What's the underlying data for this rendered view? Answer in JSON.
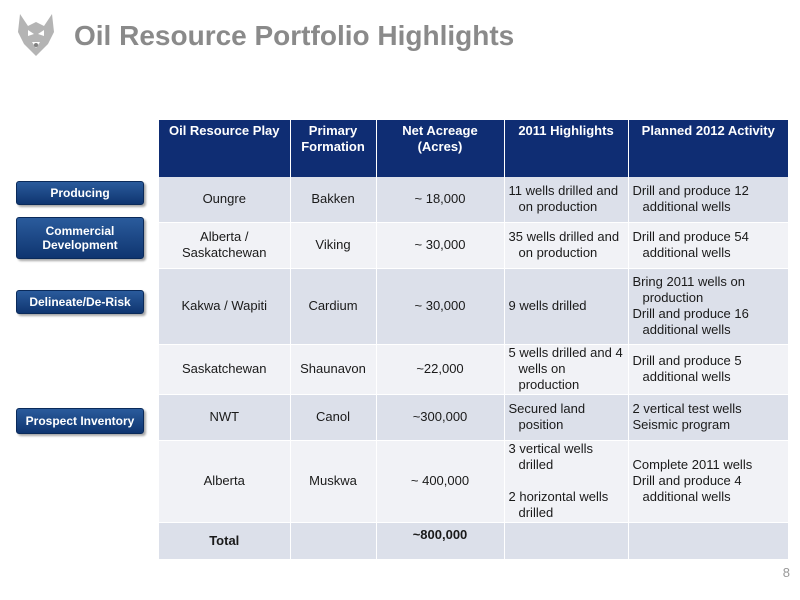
{
  "title": "Oil Resource Portfolio Highlights",
  "logo": "husky-dog-logo",
  "stages": {
    "producing": "Producing",
    "commercial": "Commercial Development",
    "delineate": "Delineate/De-Risk",
    "prospect": "Prospect Inventory"
  },
  "table": {
    "headers": [
      "Oil Resource Play",
      "Primary Formation",
      "Net Acreage (Acres)",
      "2011 Highlights",
      "Planned 2012 Activity"
    ],
    "rows": [
      {
        "play": "Oungre",
        "formation": "Bakken",
        "acreage": "~ 18,000",
        "highlights": [
          "11 wells drilled and on production"
        ],
        "planned": [
          "Drill and produce 12 additional wells"
        ]
      },
      {
        "play": "Alberta / Saskatchewan",
        "formation": "Viking",
        "acreage": "~ 30,000",
        "highlights": [
          "35 wells drilled and on production"
        ],
        "planned": [
          "Drill and produce 54 additional wells"
        ]
      },
      {
        "play": "Kakwa / Wapiti",
        "formation": "Cardium",
        "acreage": "~ 30,000",
        "highlights": [
          "9 wells drilled"
        ],
        "planned": [
          "Bring 2011 wells on production",
          "Drill  and produce 16 additional wells"
        ]
      },
      {
        "play": "Saskatchewan",
        "formation": "Shaunavon",
        "acreage": "~22,000",
        "highlights": [
          "5 wells drilled and 4 wells on production"
        ],
        "planned": [
          "Drill and produce 5 additional wells"
        ]
      },
      {
        "play": "NWT",
        "formation": "Canol",
        "acreage": "~300,000",
        "highlights": [
          "Secured land position"
        ],
        "planned": [
          "2 vertical test wells",
          "Seismic program"
        ]
      },
      {
        "play": "Alberta",
        "formation": "Muskwa",
        "acreage": "~ 400,000",
        "highlights": [
          "3 vertical wells drilled",
          "2 horizontal wells drilled"
        ],
        "planned": [
          "Complete 2011 wells",
          "Drill and produce 4 additional wells"
        ]
      }
    ],
    "total_label": "Total",
    "total_acreage": "~800,000"
  },
  "page_number": "8",
  "colors": {
    "header_bg": "#0f2d73",
    "row_odd": "#dce0ea",
    "row_even": "#f1f2f6",
    "stage_button": "#1d4a88",
    "title_gray": "#8a8a8a"
  }
}
